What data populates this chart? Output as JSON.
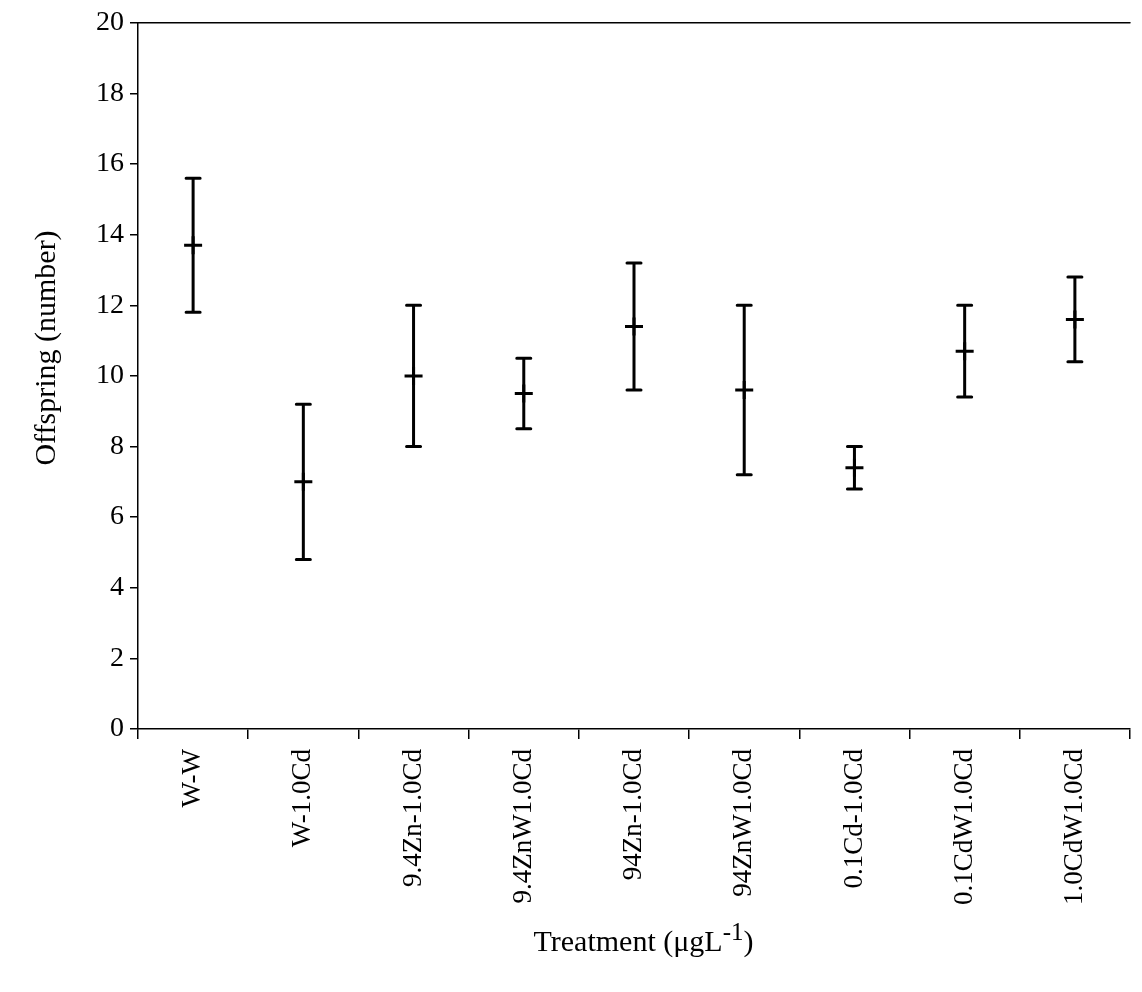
{
  "chart_data": {
    "type": "scatter",
    "xlabel": "Treatment (μgL$^{-1}$)",
    "ylabel": "Offspring (number)",
    "categories": [
      "W-W",
      "W-1.0Cd",
      "9.4Zn-1.0Cd",
      "9.4ZnW1.0Cd",
      "94Zn-1.0Cd",
      "94ZnW1.0Cd",
      "0.1Cd-1.0Cd",
      "0.1CdW1.0Cd",
      "1.0CdW1.0Cd"
    ],
    "values": [
      13.7,
      7.0,
      10.0,
      9.5,
      11.4,
      9.6,
      7.4,
      10.7,
      11.6
    ],
    "errors": [
      1.9,
      2.2,
      2.0,
      1.0,
      1.8,
      2.4,
      0.6,
      1.3,
      1.2
    ],
    "color": "#000000",
    "ylim": [
      0,
      20
    ],
    "yticks": [
      0,
      2,
      4,
      6,
      8,
      10,
      12,
      14,
      16,
      18,
      20
    ],
    "marker": "cross",
    "grid": false,
    "legend": false
  }
}
